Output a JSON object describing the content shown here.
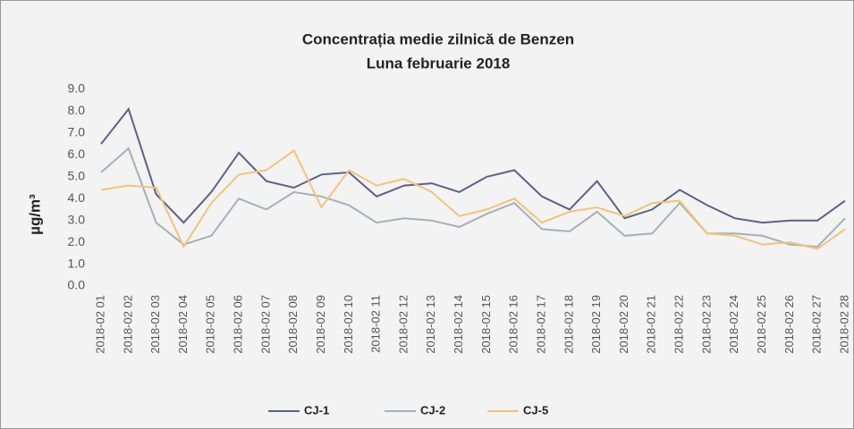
{
  "chart_data": {
    "type": "line",
    "title": "Concentrația medie zilnică de Benzen",
    "subtitle": "Luna februarie 2018",
    "y_label": "µg/m³",
    "categories": [
      "2018-02 01",
      "2018-02 02",
      "2018-02 03",
      "2018-02 04",
      "2018-02 05",
      "2018-02 06",
      "2018-02 07",
      "2018-02 08",
      "2018-02 09",
      "2018-02 10",
      "2018-02 11",
      "2018-02 12",
      "2018-02 13",
      "2018-02 14",
      "2018-02 15",
      "2018-02 16",
      "2018-02 17",
      "2018-02 18",
      "2018-02 19",
      "2018-02 20",
      "2018-02 21",
      "2018-02 22",
      "2018-02 23",
      "2018-02 24",
      "2018-02 25",
      "2018-02 26",
      "2018-02 27",
      "2018-02 28"
    ],
    "series": [
      {
        "name": "CJ-1",
        "color": "#5d6088",
        "values": [
          6.5,
          8.1,
          4.2,
          2.9,
          4.3,
          6.1,
          4.8,
          4.5,
          5.1,
          5.2,
          4.1,
          4.6,
          4.7,
          4.3,
          5.0,
          5.3,
          4.1,
          3.5,
          4.8,
          3.1,
          3.5,
          4.4,
          3.7,
          3.1,
          2.9,
          3.0,
          3.0,
          3.9
        ]
      },
      {
        "name": "CJ-2",
        "color": "#a7b0b6",
        "values": [
          5.2,
          6.3,
          2.9,
          1.9,
          2.3,
          4.0,
          3.5,
          4.3,
          4.1,
          3.7,
          2.9,
          3.1,
          3.0,
          2.7,
          3.3,
          3.8,
          2.6,
          2.5,
          3.4,
          2.3,
          2.4,
          3.8,
          2.4,
          2.4,
          2.3,
          1.9,
          1.8,
          3.1
        ]
      },
      {
        "name": "CJ-5",
        "color": "#f3c27c",
        "values": [
          4.4,
          4.6,
          4.5,
          1.8,
          3.8,
          5.1,
          5.3,
          6.2,
          3.6,
          5.3,
          4.6,
          4.9,
          4.3,
          3.2,
          3.5,
          4.0,
          2.9,
          3.4,
          3.6,
          3.2,
          3.8,
          3.9,
          2.4,
          2.3,
          1.9,
          2.0,
          1.7,
          2.6
        ]
      }
    ],
    "ylim": [
      0,
      9
    ],
    "yticks": [
      {
        "value": 0,
        "label": "0.0"
      },
      {
        "value": 1,
        "label": "1.0"
      },
      {
        "value": 2,
        "label": "2.0"
      },
      {
        "value": 3,
        "label": "3.0"
      },
      {
        "value": 4,
        "label": "4.0"
      },
      {
        "value": 5,
        "label": "5.0"
      },
      {
        "value": 6,
        "label": "6.0"
      },
      {
        "value": 7,
        "label": "7.0"
      },
      {
        "value": 8,
        "label": "8.0"
      },
      {
        "value": 9,
        "label": "9.0"
      }
    ],
    "grid": false,
    "legend": "bottom"
  }
}
